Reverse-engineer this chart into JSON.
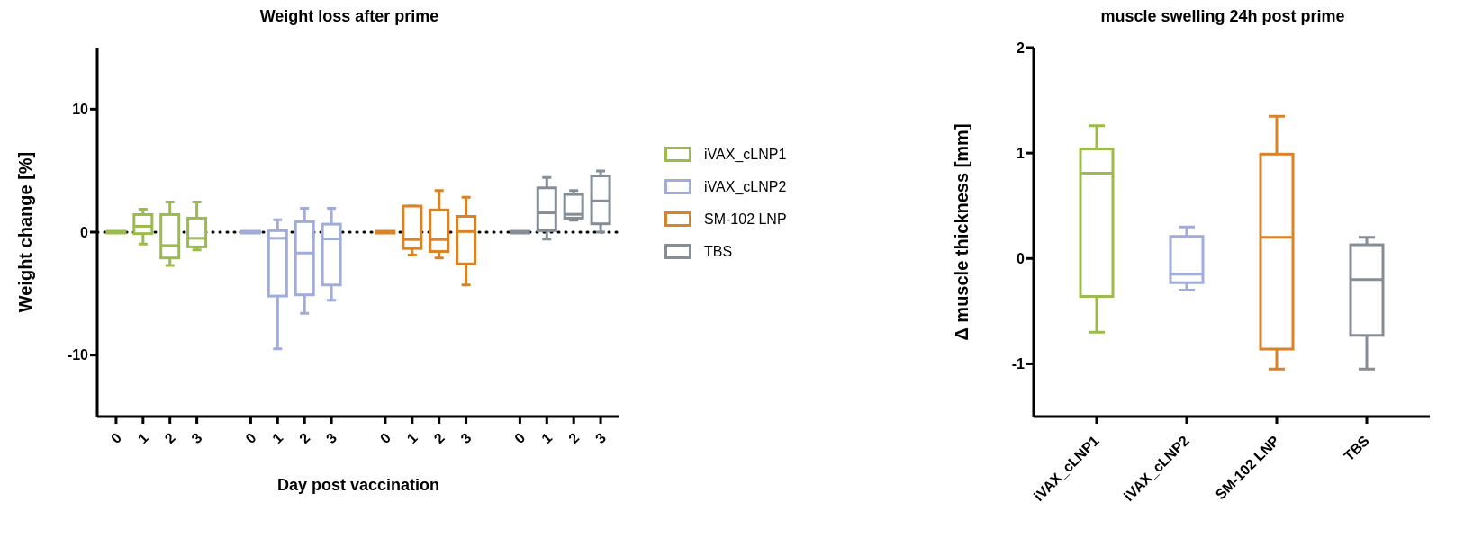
{
  "chart_data": [
    {
      "type": "box",
      "title": "Weight loss after prime",
      "xlabel": "Day post vaccination",
      "ylabel": "Weight change [%]",
      "categories": [
        "0",
        "1",
        "2",
        "3",
        null,
        "0",
        "1",
        "2",
        "3",
        null,
        "0",
        "1",
        "2",
        "3",
        null,
        "0",
        "1",
        "2",
        "3"
      ],
      "ylim": [
        -15,
        15
      ],
      "yticks": [
        -10,
        0,
        10
      ],
      "legend": "right",
      "ref_lines": [
        {
          "axis": "y",
          "value": 0,
          "line_style": "dotted",
          "color": "#000000"
        }
      ],
      "series": [
        {
          "name": "iVAX_cLNP1",
          "color": "#9bbb4a",
          "boxes": [
            {
              "low": 0,
              "q1": 0,
              "median": 0,
              "q3": 0,
              "high": 0
            },
            {
              "low": -0.97,
              "q1": -0.12,
              "median": 0.48,
              "q3": 1.43,
              "high": 1.86
            },
            {
              "low": -2.7,
              "q1": -2.1,
              "median": -1.09,
              "q3": 1.43,
              "high": 2.46
            },
            {
              "low": -1.45,
              "q1": -1.2,
              "median": -0.5,
              "q3": 1.14,
              "high": 2.46
            },
            null,
            null,
            null,
            null,
            null,
            null,
            null,
            null,
            null,
            null,
            null,
            null,
            null,
            null,
            null
          ]
        },
        {
          "name": "iVAX_cLNP2",
          "color": "#a0acdc",
          "boxes": [
            null,
            null,
            null,
            null,
            null,
            {
              "low": 0,
              "q1": 0,
              "median": 0,
              "q3": 0,
              "high": 0
            },
            {
              "low": -9.5,
              "q1": -5.2,
              "median": -0.5,
              "q3": 0.12,
              "high": 1.0
            },
            {
              "low": -6.6,
              "q1": -5.1,
              "median": -1.7,
              "q3": 0.85,
              "high": 1.93
            },
            {
              "low": -5.55,
              "q1": -4.3,
              "median": -0.55,
              "q3": 0.65,
              "high": 1.93
            },
            null,
            null,
            null,
            null,
            null,
            null,
            null,
            null,
            null,
            null
          ]
        },
        {
          "name": "SM-102 LNP",
          "color": "#d98228",
          "boxes": [
            null,
            null,
            null,
            null,
            null,
            null,
            null,
            null,
            null,
            null,
            {
              "low": 0,
              "q1": 0,
              "median": 0,
              "q3": 0,
              "high": 0
            },
            {
              "low": -1.86,
              "q1": -1.33,
              "median": -0.6,
              "q3": 2.12,
              "high": 2.12
            },
            {
              "low": -2.1,
              "q1": -1.57,
              "median": -0.6,
              "q3": 1.81,
              "high": 3.38
            },
            {
              "low": -4.3,
              "q1": -2.58,
              "median": 0.05,
              "q3": 1.28,
              "high": 2.83
            },
            null,
            null,
            null,
            null,
            null
          ]
        },
        {
          "name": "TBS",
          "color": "#858d96",
          "boxes": [
            null,
            null,
            null,
            null,
            null,
            null,
            null,
            null,
            null,
            null,
            null,
            null,
            null,
            null,
            null,
            {
              "low": 0,
              "q1": 0,
              "median": 0,
              "q3": 0,
              "high": 0
            },
            {
              "low": -0.56,
              "q1": 0.12,
              "median": 1.57,
              "q3": 3.6,
              "high": 4.44
            },
            {
              "low": 0.97,
              "q1": 1.14,
              "median": 1.45,
              "q3": 3.07,
              "high": 3.38
            },
            {
              "low": 0,
              "q1": 0.68,
              "median": 2.54,
              "q3": 4.57,
              "high": 4.98
            }
          ]
        }
      ]
    },
    {
      "type": "box",
      "title": "muscle swelling 24h post prime",
      "ylabel": "Δ muscle thickness [mm]",
      "categories": [
        "iVAX_cLNP1",
        "iVAX_cLNP2",
        "SM-102 LNP",
        "TBS"
      ],
      "ylim": [
        -1.5,
        2
      ],
      "yticks": [
        -1,
        0,
        1,
        2
      ],
      "colors": [
        "#9bbb4a",
        "#a0acdc",
        "#d98228",
        "#858d96"
      ],
      "boxes": [
        {
          "low": -0.7,
          "q1": -0.36,
          "median": 0.81,
          "q3": 1.04,
          "high": 1.26
        },
        {
          "low": -0.3,
          "q1": -0.23,
          "median": -0.15,
          "q3": 0.21,
          "high": 0.3
        },
        {
          "low": -1.05,
          "q1": -0.86,
          "median": 0.2,
          "q3": 0.99,
          "high": 1.35
        },
        {
          "low": -1.05,
          "q1": -0.73,
          "median": -0.2,
          "q3": 0.13,
          "high": 0.2
        }
      ]
    }
  ]
}
